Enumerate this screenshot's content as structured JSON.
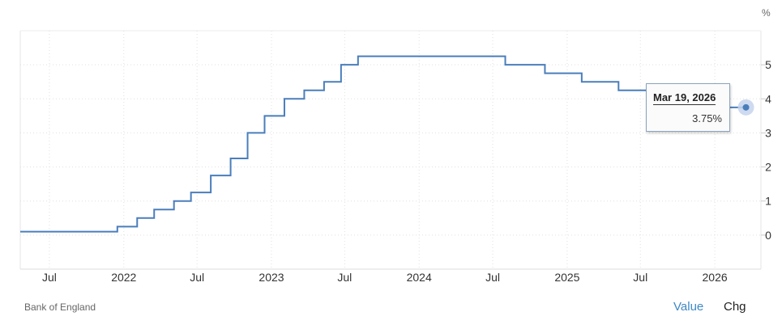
{
  "unit_label": "%",
  "source": "Bank of England",
  "toggles": {
    "value": "Value",
    "chg": "Chg"
  },
  "tooltip": {
    "date": "Mar 19, 2026",
    "value": "3.75%"
  },
  "colors": {
    "line": "#4a7ebb",
    "grid": "#e0e0e0",
    "active_toggle": "#3f88c5",
    "marker": "#c6d4ec"
  },
  "chart_data": {
    "type": "line",
    "step": true,
    "title": "",
    "xlabel": "",
    "ylabel": "%",
    "ylim": [
      -1,
      6
    ],
    "yticks": [
      0,
      1,
      2,
      3,
      4,
      5
    ],
    "grid": true,
    "xticks": [
      {
        "date": "2021-07-01",
        "label": "Jul"
      },
      {
        "date": "2022-01-01",
        "label": "2022"
      },
      {
        "date": "2022-07-01",
        "label": "Jul"
      },
      {
        "date": "2023-01-01",
        "label": "2023"
      },
      {
        "date": "2023-07-01",
        "label": "Jul"
      },
      {
        "date": "2024-01-01",
        "label": "2024"
      },
      {
        "date": "2024-07-01",
        "label": "Jul"
      },
      {
        "date": "2025-01-01",
        "label": "2025"
      },
      {
        "date": "2025-07-01",
        "label": "Jul"
      },
      {
        "date": "2026-01-01",
        "label": "2026"
      }
    ],
    "xlim": [
      "2021-04-20",
      "2026-04-25"
    ],
    "series": [
      {
        "points": [
          [
            "2021-04-20",
            0.1
          ],
          [
            "2021-12-16",
            0.25
          ],
          [
            "2022-02-03",
            0.5
          ],
          [
            "2022-03-17",
            0.75
          ],
          [
            "2022-05-05",
            1.0
          ],
          [
            "2022-06-16",
            1.25
          ],
          [
            "2022-08-04",
            1.75
          ],
          [
            "2022-09-22",
            2.25
          ],
          [
            "2022-11-03",
            3.0
          ],
          [
            "2022-12-15",
            3.5
          ],
          [
            "2023-02-02",
            4.0
          ],
          [
            "2023-03-23",
            4.25
          ],
          [
            "2023-05-11",
            4.5
          ],
          [
            "2023-06-22",
            5.0
          ],
          [
            "2023-08-03",
            5.25
          ],
          [
            "2024-08-01",
            5.0
          ],
          [
            "2024-11-07",
            4.75
          ],
          [
            "2025-02-06",
            4.5
          ],
          [
            "2025-05-08",
            4.25
          ],
          [
            "2025-08-07",
            4.0
          ],
          [
            "2025-12-18",
            3.75
          ],
          [
            "2026-03-19",
            3.75
          ]
        ]
      }
    ]
  }
}
